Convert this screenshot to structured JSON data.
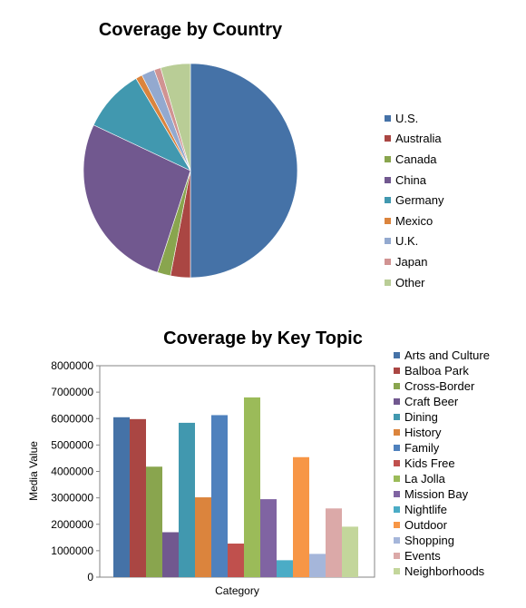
{
  "chart_data": [
    {
      "type": "pie",
      "title": "Coverage by Country",
      "legend_position": "right",
      "slices": [
        {
          "label": "U.S.",
          "value": 50.0,
          "color": "#4572A7"
        },
        {
          "label": "Australia",
          "value": 3.0,
          "color": "#AA4643"
        },
        {
          "label": "Canada",
          "value": 2.0,
          "color": "#89A54E"
        },
        {
          "label": "China",
          "value": 27.0,
          "color": "#71588F"
        },
        {
          "label": "Germany",
          "value": 9.5,
          "color": "#4198AF"
        },
        {
          "label": "Mexico",
          "value": 1.0,
          "color": "#DB843D"
        },
        {
          "label": "U.K.",
          "value": 2.0,
          "color": "#93A9CF"
        },
        {
          "label": "Japan",
          "value": 1.0,
          "color": "#D19392"
        },
        {
          "label": "Other",
          "value": 4.5,
          "color": "#B9CD96"
        }
      ]
    },
    {
      "type": "bar",
      "title": "Coverage by Key Topic",
      "xlabel": "Category",
      "ylabel": "Media Value",
      "ylim": [
        0,
        8000000
      ],
      "yticks": [
        "0",
        "1000000",
        "2000000",
        "3000000",
        "4000000",
        "5000000",
        "6000000",
        "7000000",
        "8000000"
      ],
      "grid": false,
      "legend_position": "right",
      "series": [
        {
          "name": "Arts and Culture",
          "value": 6050000,
          "color": "#4572A7"
        },
        {
          "name": "Balboa Park",
          "value": 5980000,
          "color": "#AA4643"
        },
        {
          "name": "Cross-Border",
          "value": 4180000,
          "color": "#89A54E"
        },
        {
          "name": "Craft Beer",
          "value": 1700000,
          "color": "#71588F"
        },
        {
          "name": "Dining",
          "value": 5840000,
          "color": "#4198AF"
        },
        {
          "name": "History",
          "value": 3020000,
          "color": "#DB843D"
        },
        {
          "name": "Family",
          "value": 6130000,
          "color": "#4F81BD"
        },
        {
          "name": "Kids Free",
          "value": 1270000,
          "color": "#C0504D"
        },
        {
          "name": "La Jolla",
          "value": 6800000,
          "color": "#9BBB59"
        },
        {
          "name": "Mission Bay",
          "value": 2950000,
          "color": "#8064A2"
        },
        {
          "name": "Nightlife",
          "value": 640000,
          "color": "#4BACC6"
        },
        {
          "name": "Outdoor",
          "value": 4540000,
          "color": "#F79646"
        },
        {
          "name": "Shopping",
          "value": 880000,
          "color": "#A5B6DA"
        },
        {
          "name": "Events",
          "value": 2600000,
          "color": "#DBA9A8"
        },
        {
          "name": "Neighborhoods",
          "value": 1910000,
          "color": "#C3D69B"
        }
      ]
    }
  ]
}
